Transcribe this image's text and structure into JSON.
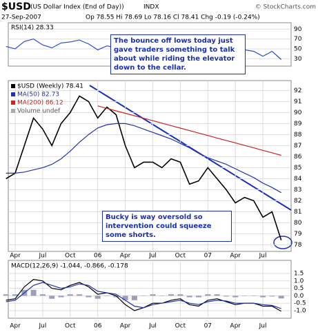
{
  "header": {
    "symbol": "$USD",
    "name": "(US Dollar Index (End of Day))",
    "exchange": "INDX",
    "date": "27-Sep-2007",
    "quote": "Op 78.55 Hi 78.69 Lo 78.16 Cl 78.41 Chg -0.19 (-0.24%)",
    "credit": "© StockCharts.com"
  },
  "annotations": [
    "The bounce off lows today just gave traders something to talk about while riding the elevator down to the cellar.",
    "Bucky is way oversold so intervention could squeeze some shorts."
  ],
  "chart_data": [
    {
      "type": "line",
      "label": "RSI(14) 28.33",
      "ylim": [
        15,
        103
      ],
      "yticks": [
        90,
        70,
        50,
        30
      ],
      "grid": true,
      "series": [
        {
          "color": "#2a4bd0",
          "values": [
            55,
            50,
            65,
            70,
            58,
            52,
            62,
            64,
            68,
            60,
            48,
            56,
            52,
            40,
            38,
            48,
            50,
            46,
            55,
            50,
            40,
            45,
            56,
            45,
            40,
            35,
            48,
            45,
            35,
            45,
            28.33
          ]
        }
      ]
    },
    {
      "type": "line",
      "ylim": [
        77.4,
        92.9
      ],
      "yticks": [
        92,
        91,
        90,
        89,
        88,
        87,
        86,
        85,
        84,
        83,
        82,
        81,
        80,
        79,
        78
      ],
      "grid": true,
      "categories": [
        null,
        "Apr",
        null,
        null,
        "Jul",
        null,
        null,
        "Oct",
        null,
        null,
        "06",
        null,
        null,
        "Apr",
        null,
        null,
        "Jul",
        null,
        null,
        "Oct",
        null,
        null,
        "07",
        null,
        null,
        "Apr",
        null,
        null,
        "Jul",
        null,
        null
      ],
      "legend_extra": "Volume undef",
      "series": [
        {
          "name": "$USD (Weekly) 78.41",
          "color": "#000000",
          "values": [
            84,
            84.5,
            87,
            89.5,
            88.5,
            87,
            89,
            90,
            91.5,
            91,
            89.5,
            90.5,
            89.8,
            87,
            85,
            85.5,
            85.5,
            85,
            85.8,
            85.5,
            83.5,
            83.8,
            85,
            84,
            83,
            81.8,
            82.3,
            82,
            80.5,
            81,
            78.41
          ]
        },
        {
          "name": "MA(50) 82.73",
          "color": "#2233aa",
          "values": [
            84.5,
            84.5,
            84.6,
            84.8,
            85,
            85.3,
            85.8,
            86.5,
            87.3,
            88,
            88.6,
            88.9,
            89,
            89,
            88.8,
            88.5,
            88.2,
            87.9,
            87.6,
            87.2,
            86.8,
            86.3,
            85.9,
            85.6,
            85.3,
            84.9,
            84.5,
            84.1,
            83.6,
            83.2,
            82.73
          ]
        },
        {
          "name": "MA(200) 86.12",
          "color": "#cc2222",
          "values": [
            null,
            null,
            null,
            null,
            null,
            null,
            null,
            null,
            null,
            null,
            90.6,
            90.38,
            90.15,
            89.93,
            89.71,
            89.48,
            89.26,
            89.04,
            88.81,
            88.59,
            88.36,
            88.14,
            87.92,
            87.69,
            87.47,
            87.25,
            87.02,
            86.8,
            86.57,
            86.35,
            86.12
          ]
        }
      ]
    },
    {
      "type": "line",
      "label": "MACD(12,26,9) -1.044, -0.866, -0.178",
      "ylim": [
        -1.51,
        2.38
      ],
      "yticks": [
        {
          "value": 1.5,
          "label": "1.5"
        },
        {
          "value": 1,
          "label": "1.0"
        },
        {
          "value": 0.5,
          "label": "0.5"
        },
        {
          "value": 0,
          "label": "0.0"
        },
        {
          "value": -0.5,
          "label": "-0.5"
        },
        {
          "value": -1,
          "label": "-1.0"
        }
      ],
      "grid": true,
      "categories": [
        null,
        "Apr",
        null,
        null,
        "Jul",
        null,
        null,
        "Oct",
        null,
        null,
        "06",
        null,
        null,
        "Apr",
        null,
        null,
        "Jul",
        null,
        null,
        "Oct",
        null,
        null,
        "07",
        null,
        null,
        "Apr",
        null,
        null,
        "Jul",
        null,
        null
      ],
      "series": [
        {
          "style": "bar",
          "color": "#9aa0b8",
          "values": [
            0.1,
            0.1,
            0.4,
            0.4,
            0.1,
            -0.2,
            -0.1,
            0.1,
            0.1,
            -0.1,
            -0.2,
            0,
            -0.1,
            -0.3,
            -0.3,
            0,
            0.1,
            0,
            0.1,
            0.1,
            -0.1,
            -0.1,
            0.1,
            0.1,
            -0.05,
            -0.1,
            0,
            0,
            -0.1,
            -0.05,
            -0.178
          ]
        },
        {
          "color": "#000000",
          "values": [
            -0.3,
            -0.2,
            0.6,
            1.1,
            1.0,
            0.5,
            0.4,
            0.7,
            0.9,
            0.6,
            0.1,
            0.2,
            0.0,
            -0.6,
            -1.0,
            -0.8,
            -0.5,
            -0.5,
            -0.3,
            -0.2,
            -0.6,
            -0.7,
            -0.3,
            -0.2,
            -0.4,
            -0.6,
            -0.5,
            -0.5,
            -0.7,
            -0.7,
            -1.044
          ]
        },
        {
          "color": "#2233aa",
          "values": [
            -0.4,
            -0.3,
            0.2,
            0.7,
            0.9,
            0.7,
            0.5,
            0.6,
            0.8,
            0.7,
            0.3,
            0.2,
            0.1,
            -0.3,
            -0.7,
            -0.8,
            -0.6,
            -0.5,
            -0.4,
            -0.3,
            -0.5,
            -0.6,
            -0.4,
            -0.3,
            -0.35,
            -0.5,
            -0.5,
            -0.5,
            -0.6,
            -0.65,
            -0.866
          ]
        }
      ]
    }
  ]
}
